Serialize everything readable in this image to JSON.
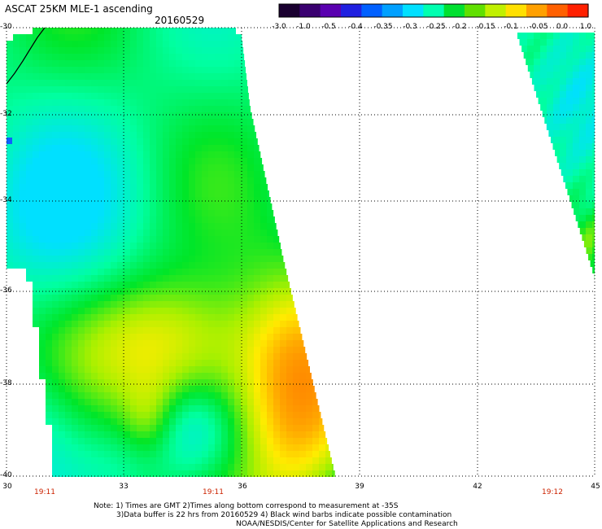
{
  "header": {
    "title": "ASCAT 25KM MLE-1 ascending",
    "date": "20160529"
  },
  "colorbar": {
    "labels": [
      "-3.0",
      "-1.0",
      "-0.5",
      "-0.4",
      "-0.35",
      "-0.3",
      "-0.25",
      "-0.2",
      "-0.15",
      "-0.1",
      "-0.05",
      "0.0",
      "1.0"
    ],
    "colors": [
      "#1a0030",
      "#3a0070",
      "#5a00b0",
      "#2020e0",
      "#0060ff",
      "#00a0ff",
      "#00e0ff",
      "#00ffb0",
      "#00e030",
      "#60e000",
      "#c0f000",
      "#ffe000",
      "#ffa000",
      "#ff6000",
      "#ff2000"
    ]
  },
  "axes": {
    "lat_labels": [
      "-30",
      "-32",
      "-34",
      "-36",
      "-38",
      "-40"
    ],
    "lon_labels": [
      "30",
      "33",
      "36",
      "39",
      "42",
      "45"
    ]
  },
  "times": [
    "19:11",
    "19:11",
    "19:12"
  ],
  "notes": {
    "line1": "Note: 1) Times are GMT 2)Times along bottom correspond to measurement at -35S",
    "line2": "3)Data buffer is 22 hrs from 20160529 4) Black wind barbs indicate possible contamination",
    "line3": "NOAA/NESDIS/Center for Satellite Applications and Research"
  }
}
